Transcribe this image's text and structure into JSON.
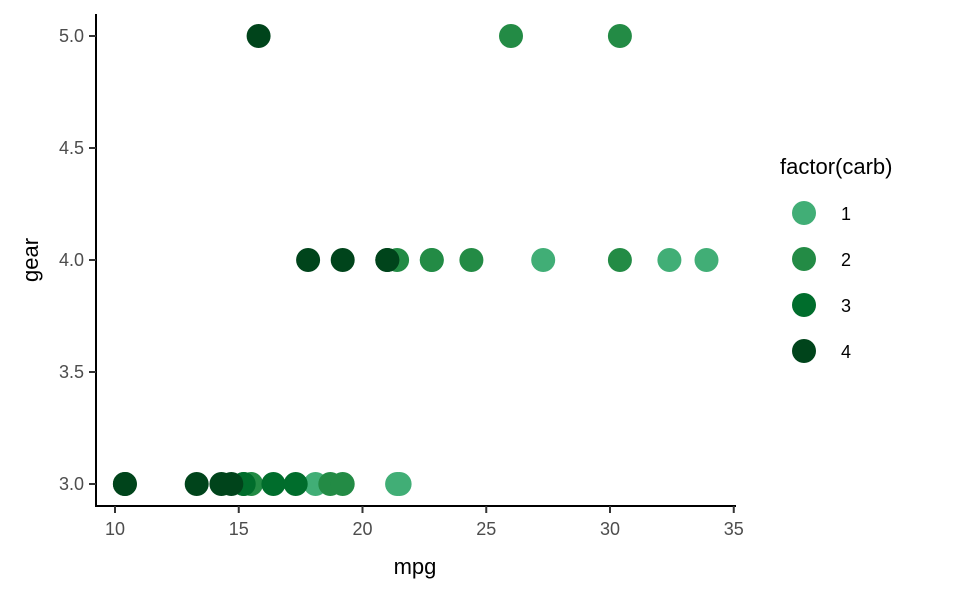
{
  "chart_data": {
    "type": "scatter",
    "xlabel": "mpg",
    "ylabel": "gear",
    "xlim": [
      9.2,
      35.1
    ],
    "ylim": [
      2.9,
      5.1
    ],
    "x_ticks": [
      "10",
      "15",
      "20",
      "25",
      "30",
      "35"
    ],
    "y_ticks": [
      "3.0",
      "3.5",
      "4.0",
      "4.5",
      "5.0"
    ],
    "grid": false,
    "legend": {
      "title": "factor(carb)",
      "position": "right",
      "entries": [
        {
          "label": "1",
          "color": "#41AE76"
        },
        {
          "label": "2",
          "color": "#238B45"
        },
        {
          "label": "3",
          "color": "#006D2C"
        },
        {
          "label": "4",
          "color": "#00441B"
        }
      ]
    },
    "series": [
      {
        "name": "1",
        "color": "#41AE76",
        "points": [
          {
            "x": 22.8,
            "y": 4.0
          },
          {
            "x": 21.4,
            "y": 3.0
          },
          {
            "x": 18.1,
            "y": 3.0
          },
          {
            "x": 32.4,
            "y": 4.0
          },
          {
            "x": 33.9,
            "y": 4.0
          },
          {
            "x": 21.5,
            "y": 3.0
          },
          {
            "x": 27.3,
            "y": 4.0
          }
        ]
      },
      {
        "name": "2",
        "color": "#238B45",
        "points": [
          {
            "x": 18.7,
            "y": 3.0
          },
          {
            "x": 24.4,
            "y": 4.0
          },
          {
            "x": 22.8,
            "y": 4.0
          },
          {
            "x": 30.4,
            "y": 4.0
          },
          {
            "x": 15.5,
            "y": 3.0
          },
          {
            "x": 15.2,
            "y": 3.0
          },
          {
            "x": 19.2,
            "y": 3.0
          },
          {
            "x": 26.0,
            "y": 5.0
          },
          {
            "x": 30.4,
            "y": 5.0
          },
          {
            "x": 21.4,
            "y": 4.0
          }
        ]
      },
      {
        "name": "3",
        "color": "#006D2C",
        "points": [
          {
            "x": 16.4,
            "y": 3.0
          },
          {
            "x": 17.3,
            "y": 3.0
          },
          {
            "x": 15.2,
            "y": 3.0
          }
        ]
      },
      {
        "name": "4",
        "color": "#00441B",
        "points": [
          {
            "x": 21.0,
            "y": 4.0
          },
          {
            "x": 21.0,
            "y": 4.0
          },
          {
            "x": 14.3,
            "y": 3.0
          },
          {
            "x": 19.2,
            "y": 4.0
          },
          {
            "x": 17.8,
            "y": 4.0
          },
          {
            "x": 10.4,
            "y": 3.0
          },
          {
            "x": 10.4,
            "y": 3.0
          },
          {
            "x": 14.7,
            "y": 3.0
          },
          {
            "x": 13.3,
            "y": 3.0
          },
          {
            "x": 15.8,
            "y": 5.0
          }
        ]
      }
    ]
  }
}
